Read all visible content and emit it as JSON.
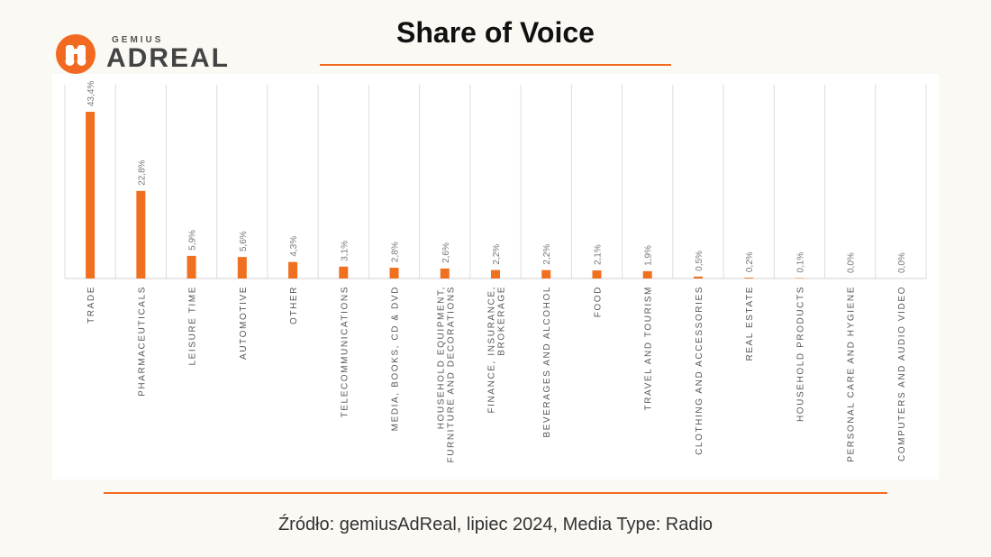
{
  "brand": {
    "top": "GEMIUS",
    "main": "ADREAL",
    "accent": "#f26a21"
  },
  "title": "Share of Voice",
  "source": "Źródło: gemiusAdReal, lipiec 2024, Media Type: Radio",
  "chart_data": {
    "type": "bar",
    "categories": [
      "TRADE",
      "PHARMACEUTICALS",
      "LEISURE TIME",
      "AUTOMOTIVE",
      "OTHER",
      "TELECOMMUNICATIONS",
      "MEDIA, BOOKS, CD & DVD",
      "HOUSEHOLD EQUIPMENT, FURNITURE AND DECORATIONS",
      "FINANCE, INSURANCE, BROKERAGE",
      "BEVERAGES AND ALCOHOL",
      "FOOD",
      "TRAVEL AND TOURISM",
      "CLOTHING AND ACCESSORIES",
      "REAL ESTATE",
      "HOUSEHOLD PRODUCTS",
      "PERSONAL CARE AND HYGIENE",
      "COMPUTERS AND AUDIO VIDEO"
    ],
    "category_lines": [
      [
        "TRADE"
      ],
      [
        "PHARMACEUTICALS"
      ],
      [
        "LEISURE TIME"
      ],
      [
        "AUTOMOTIVE"
      ],
      [
        "OTHER"
      ],
      [
        "TELECOMMUNICATIONS"
      ],
      [
        "MEDIA, BOOKS, CD & DVD"
      ],
      [
        "HOUSEHOLD EQUIPMENT,",
        "FURNITURE AND DECORATIONS"
      ],
      [
        "FINANCE, INSURANCE,",
        "BROKERAGE"
      ],
      [
        "BEVERAGES AND ALCOHOL"
      ],
      [
        "FOOD"
      ],
      [
        "TRAVEL AND TOURISM"
      ],
      [
        "CLOTHING AND ACCESSORIES"
      ],
      [
        "REAL ESTATE"
      ],
      [
        "HOUSEHOLD PRODUCTS"
      ],
      [
        "PERSONAL CARE AND HYGIENE"
      ],
      [
        "COMPUTERS AND AUDIO VIDEO"
      ]
    ],
    "values": [
      43.4,
      22.8,
      5.9,
      5.6,
      4.3,
      3.1,
      2.8,
      2.6,
      2.2,
      2.2,
      2.1,
      1.9,
      0.5,
      0.2,
      0.1,
      0.0,
      0.0
    ],
    "value_labels": [
      "43,4%",
      "22,8%",
      "5,9%",
      "5,6%",
      "4,3%",
      "3,1%",
      "2,8%",
      "2,6%",
      "2,2%",
      "2,2%",
      "2,1%",
      "1,9%",
      "0,5%",
      "0,2%",
      "0,1%",
      "0,0%",
      "0,0%"
    ],
    "ylim": [
      0,
      43.4
    ],
    "unit": "%",
    "bar_color": "#f07020",
    "grid": "vertical category separators"
  }
}
